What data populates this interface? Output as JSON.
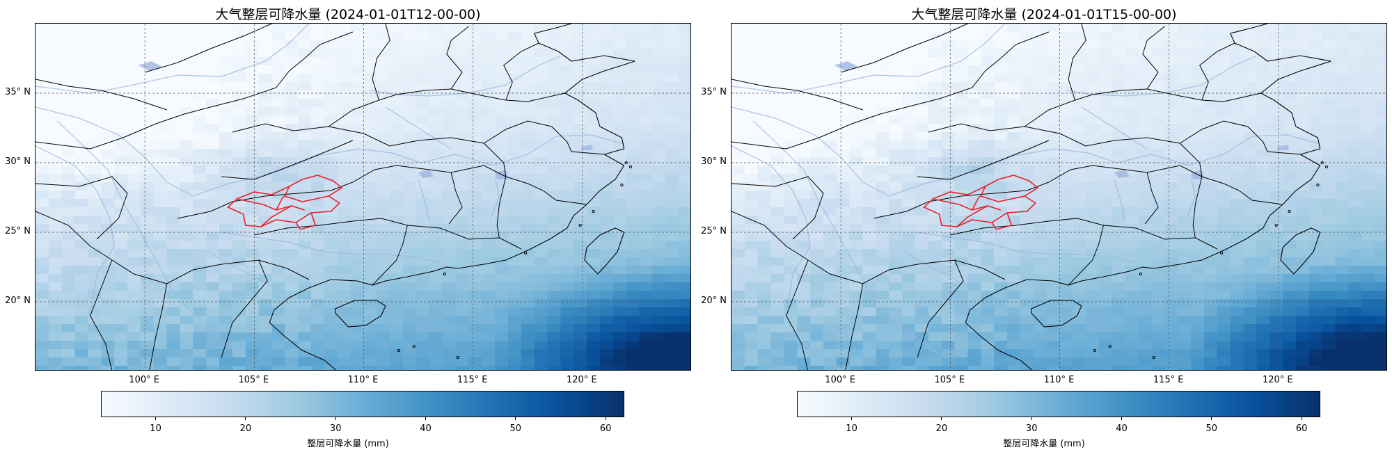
{
  "panels": [
    {
      "title": "大气整层可降水量 (2024-01-01T12-00-00)",
      "time": "2024-01-01T12-00-00",
      "shift": 0
    },
    {
      "title": "大气整层可降水量 (2024-01-01T15-00-00)",
      "time": "2024-01-01T15-00-00",
      "shift": 0.6
    }
  ],
  "map": {
    "lon_range": [
      95,
      125
    ],
    "lat_range": [
      15,
      40
    ],
    "lat_ticks": [
      {
        "value": 20,
        "label": "20° N"
      },
      {
        "value": 25,
        "label": "25° N"
      },
      {
        "value": 30,
        "label": "30° N"
      },
      {
        "value": 35,
        "label": "35° N"
      }
    ],
    "lon_ticks": [
      {
        "value": 100,
        "label": "100° E"
      },
      {
        "value": 105,
        "label": "105° E"
      },
      {
        "value": 110,
        "label": "110° E"
      },
      {
        "value": 115,
        "label": "115° E"
      },
      {
        "value": 120,
        "label": "120° E"
      }
    ],
    "highlight_color": "#e8202a",
    "border_color": "#000000",
    "river_color": "#9db7e0"
  },
  "colorbar": {
    "label": "整层可降水量 (mm)",
    "range": [
      4,
      62
    ],
    "ticks": [
      10,
      20,
      30,
      40,
      50,
      60
    ],
    "colormap": "Blues",
    "colors": [
      "#f7fbff",
      "#deebf7",
      "#c6dbef",
      "#9ecae1",
      "#6baed6",
      "#4292c6",
      "#2171b5",
      "#08519c",
      "#08306b"
    ]
  }
}
